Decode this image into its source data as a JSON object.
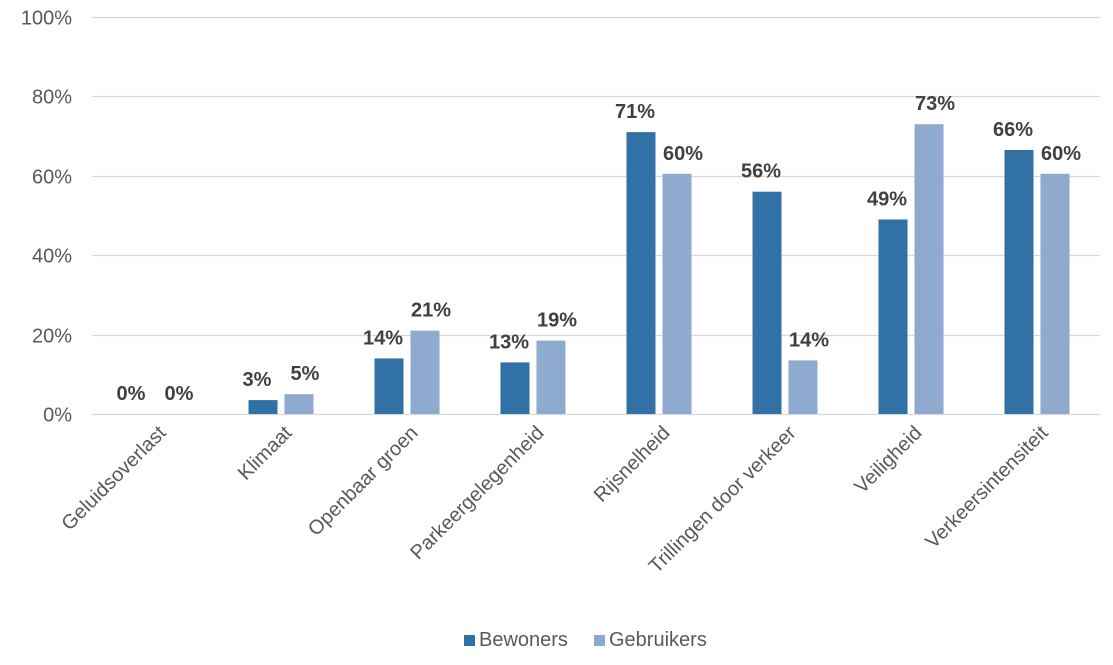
{
  "chart_data": {
    "type": "bar",
    "categories": [
      "Geluidsoverlast",
      "Klimaat",
      "Openbaar groen",
      "Parkeergelegenheid",
      "Rijsnelheid",
      "Trillingen door verkeer",
      "Veiligheid",
      "Verkeersintensiteit"
    ],
    "series": [
      {
        "name": "Bewoners",
        "color": "#3271a6",
        "values": [
          0,
          3.5,
          14,
          13,
          71,
          56,
          49,
          66.5
        ],
        "labels": [
          "0%",
          "3%",
          "14%",
          "13%",
          "71%",
          "56%",
          "49%",
          "66%"
        ]
      },
      {
        "name": "Gebruikers",
        "color": "#8faacf",
        "values": [
          0,
          5,
          21,
          18.5,
          60.5,
          13.5,
          73,
          60.5
        ],
        "labels": [
          "0%",
          "5%",
          "21%",
          "19%",
          "60%",
          "14%",
          "73%",
          "60%"
        ]
      }
    ],
    "ylim": [
      0,
      100
    ],
    "yticks": [
      0,
      20,
      40,
      60,
      80,
      100
    ],
    "ytick_labels": [
      "0%",
      "20%",
      "40%",
      "60%",
      "80%",
      "100%"
    ],
    "title": "",
    "xlabel": "",
    "ylabel": "",
    "grid": true,
    "legend_position": "bottom-center",
    "gridline_color": "#d9d9d9"
  }
}
